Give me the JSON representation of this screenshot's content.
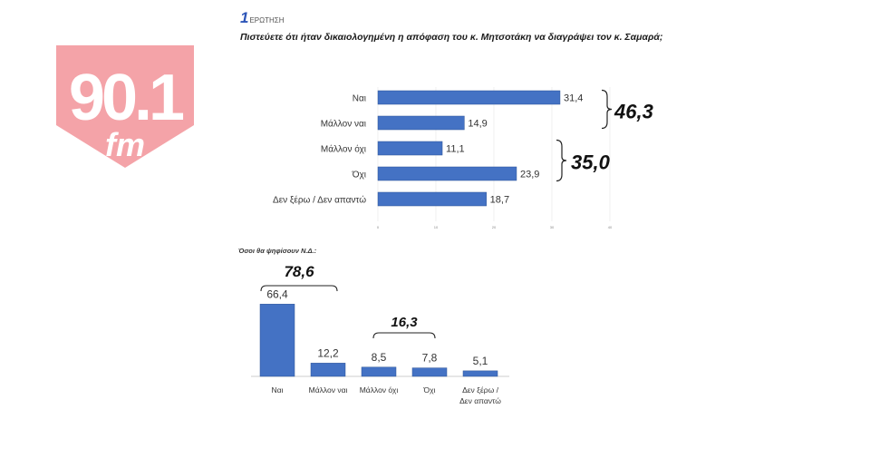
{
  "header": {
    "question_number": "1",
    "question_label": "ΕΡΩΤΗΣΗ",
    "question_text": "Πιστεύετε ότι ήταν δικαιολογημένη η απόφαση του κ. Μητσοτάκη να διαγράψει τον κ. Σαμαρά;"
  },
  "logo": {
    "number": "90.1",
    "suffix": "fm",
    "background": "#f4a3a8"
  },
  "colors": {
    "bar": "#4472c4",
    "bar_stroke": "#2f5597"
  },
  "chart_data": [
    {
      "type": "bar",
      "orientation": "horizontal",
      "title": "Πιστεύετε ότι ήταν δικαιολογημένη η απόφαση του κ. Μητσοτάκη να διαγράψει τον κ. Σαμαρά;",
      "categories": [
        "Ναι",
        "Μάλλον ναι",
        "Μάλλον όχι",
        "Όχι",
        "Δεν ξέρω / Δεν απαντώ"
      ],
      "value_labels": [
        "31,4",
        "14,9",
        "11,1",
        "23,9",
        "18,7"
      ],
      "values": [
        31.4,
        14.9,
        11.1,
        23.9,
        18.7
      ],
      "xlim": [
        0,
        40
      ],
      "ticks": [
        0,
        10,
        20,
        30,
        40
      ],
      "annotations": [
        {
          "text": "46,3",
          "categories": [
            "Ναι",
            "Μάλλον ναι"
          ]
        },
        {
          "text": "35,0",
          "categories": [
            "Μάλλον όχι",
            "Όχι"
          ]
        }
      ]
    },
    {
      "type": "bar",
      "orientation": "vertical",
      "title": "Όσοι θα ψηφίσουν Ν.Δ.:",
      "categories": [
        "Ναι",
        "Μάλλον ναι",
        "Μάλλον όχι",
        "Όχι",
        "Δεν ξέρω / Δεν απαντώ"
      ],
      "category_lines": [
        [
          "Ναι"
        ],
        [
          "Μάλλον ναι"
        ],
        [
          "Μάλλον όχι"
        ],
        [
          "Όχι"
        ],
        [
          "Δεν ξέρω /",
          "Δεν απαντώ"
        ]
      ],
      "value_labels": [
        "66,4",
        "12,2",
        "8,5",
        "7,8",
        "5,1"
      ],
      "values": [
        66.4,
        12.2,
        8.5,
        7.8,
        5.1
      ],
      "ylim": [
        0,
        70
      ],
      "annotations": [
        {
          "text": "78,6",
          "categories": [
            "Ναι",
            "Μάλλον ναι"
          ]
        },
        {
          "text": "16,3",
          "categories": [
            "Μάλλον όχι",
            "Όχι"
          ]
        }
      ]
    }
  ]
}
